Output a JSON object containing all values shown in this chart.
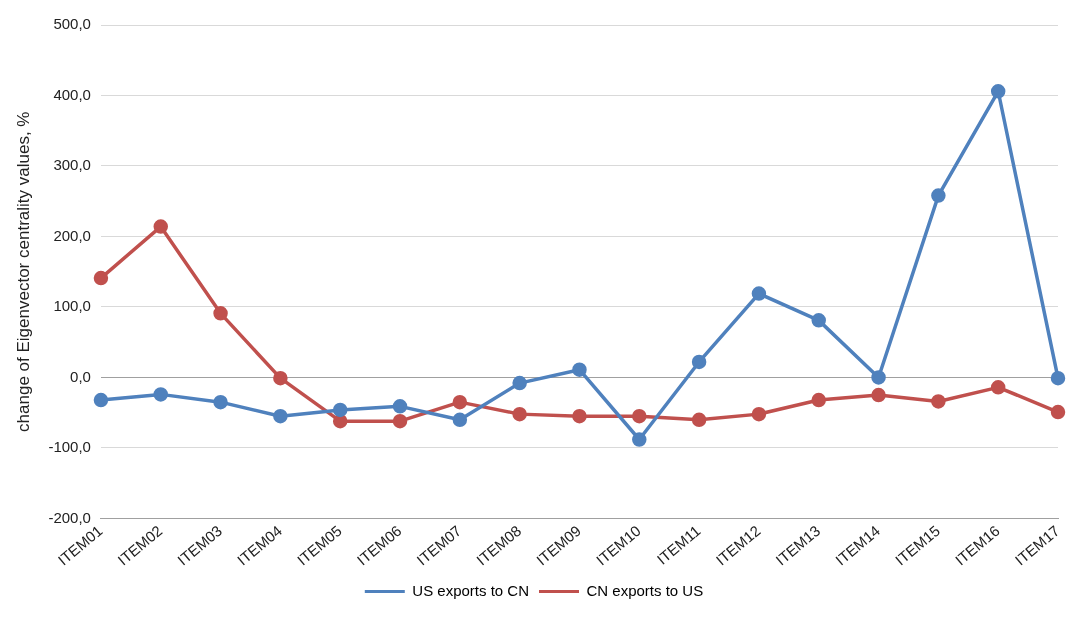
{
  "chart_data": {
    "type": "line",
    "ylabel": "change of Eigenvector centrality values, %",
    "categories": [
      "ITEM01",
      "ITEM02",
      "ITEM03",
      "ITEM04",
      "ITEM05",
      "ITEM06",
      "ITEM07",
      "ITEM08",
      "ITEM09",
      "ITEM10",
      "ITEM11",
      "ITEM12",
      "ITEM13",
      "ITEM14",
      "ITEM15",
      "ITEM16",
      "ITEM17"
    ],
    "series": [
      {
        "name": "US exports to CN",
        "color": "#4f81bd",
        "values": [
          -32,
          -24,
          -35,
          -55,
          -46,
          -41,
          -60,
          -8,
          11,
          -88,
          22,
          119,
          81,
          0,
          258,
          406,
          -1
        ]
      },
      {
        "name": "CN exports to US",
        "color": "#c0504d",
        "values": [
          141,
          214,
          91,
          -1,
          -62,
          -62,
          -35,
          -52,
          -55,
          -55,
          -60,
          -52,
          -32,
          -25,
          -34,
          -14,
          -49
        ]
      }
    ],
    "ylim": [
      -200,
      500
    ],
    "yticks": [
      {
        "value": -200,
        "label": "-200,0"
      },
      {
        "value": -100,
        "label": "-100,0"
      },
      {
        "value": 0,
        "label": "0,0"
      },
      {
        "value": 100,
        "label": "100,0"
      },
      {
        "value": 200,
        "label": "200,0"
      },
      {
        "value": 300,
        "label": "300,0"
      },
      {
        "value": 400,
        "label": "400,0"
      },
      {
        "value": 500,
        "label": "500,0"
      }
    ],
    "grid": "y",
    "legend": "bottom",
    "marker": "circle",
    "line_style": "solid"
  }
}
